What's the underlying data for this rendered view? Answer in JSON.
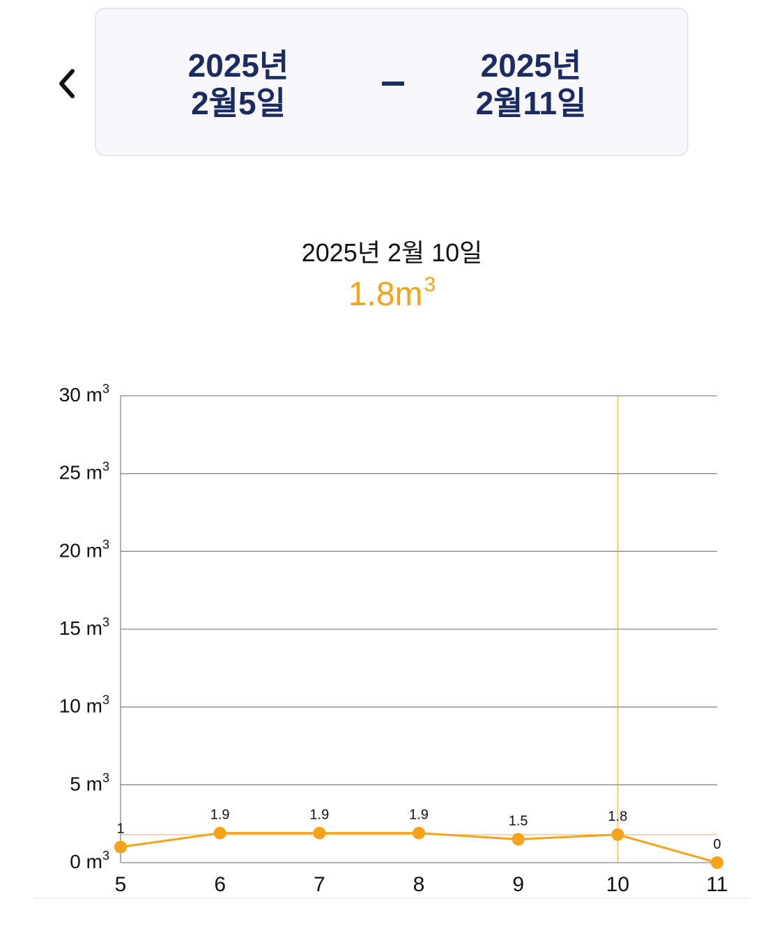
{
  "header": {
    "start_year": "2025년",
    "start_day": "2월5일",
    "end_year": "2025년",
    "end_day": "2월11일"
  },
  "selection": {
    "date": "2025년 2월 10일",
    "value_main": "1.8m",
    "value_sup": "3"
  },
  "colors": {
    "accent": "#f7a21b",
    "navy": "#1c2c62",
    "grid": "#888888"
  },
  "chart_data": {
    "type": "line",
    "x": [
      "5",
      "6",
      "7",
      "8",
      "9",
      "10",
      "11"
    ],
    "series": [
      {
        "values": [
          1,
          1.9,
          1.9,
          1.9,
          1.5,
          1.8,
          0
        ]
      }
    ],
    "data_labels": [
      "1",
      "1.9",
      "1.9",
      "1.9",
      "1.5",
      "1.8",
      "0"
    ],
    "y_ticks": [
      0,
      5,
      10,
      15,
      20,
      25,
      30
    ],
    "y_tick_unit": "m",
    "y_tick_unit_sup": "3",
    "ylim": [
      0,
      30
    ],
    "highlight_index": 5,
    "grid": true
  }
}
